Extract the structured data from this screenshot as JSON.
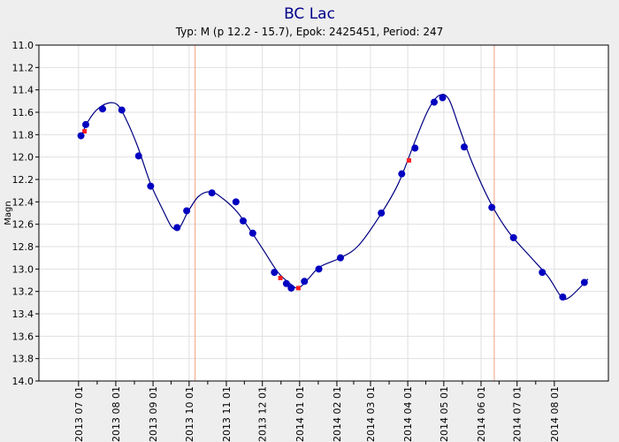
{
  "chart_data": {
    "type": "line",
    "title": "BC Lac",
    "subtitle": "Typ: M (p 12.2 - 15.7), Epok: 2425451, Period: 247",
    "y_label": "Magn",
    "xlim": [
      "2013 05 29",
      "2014 09 15"
    ],
    "xticks": [
      "2013 07 01",
      "2013 08 01",
      "2013 09 01",
      "2013 10 01",
      "2013 11 01",
      "2013 12 01",
      "2014 01 01",
      "2014 02 01",
      "2014 03 01",
      "2014 04 01",
      "2014 05 01",
      "2014 06 01",
      "2014 07 01",
      "2014 08 01"
    ],
    "ylim": [
      11,
      14
    ],
    "y_inverted": true,
    "yticks": [
      {
        "value": 11,
        "label": "11.0"
      },
      {
        "value": 11.2,
        "label": "11.2"
      },
      {
        "value": 11.4,
        "label": "11.4"
      },
      {
        "value": 11.6,
        "label": "11.6"
      },
      {
        "value": 11.8,
        "label": "11.8"
      },
      {
        "value": 12,
        "label": "12.0"
      },
      {
        "value": 12.2,
        "label": "12.2"
      },
      {
        "value": 12.4,
        "label": "12.4"
      },
      {
        "value": 12.6,
        "label": "12.6"
      },
      {
        "value": 12.8,
        "label": "12.8"
      },
      {
        "value": 13,
        "label": "13.0"
      },
      {
        "value": 13.2,
        "label": "13.2"
      },
      {
        "value": 13.4,
        "label": "13.4"
      },
      {
        "value": 13.6,
        "label": "13.6"
      },
      {
        "value": 13.8,
        "label": "13.8"
      },
      {
        "value": 14,
        "label": "14.0"
      }
    ],
    "grid": true,
    "vlines": {
      "color": "#f0a080",
      "x": [
        "2013 10 06",
        "2014 06 12"
      ]
    },
    "series": [
      {
        "style": "line",
        "color": "#000080",
        "x": [
          "2013 07 03",
          "2013 07 09",
          "2013 07 16",
          "2013 07 25",
          "2013 08 02",
          "2013 08 09",
          "2013 08 19",
          "2013 08 30",
          "2013 09 10",
          "2013 09 17",
          "2013 09 23",
          "2013 09 30",
          "2013 10 09",
          "2013 10 19",
          "2013 10 29",
          "2013 11 10",
          "2013 11 22",
          "2013 12 03",
          "2013 12 14",
          "2013 12 24",
          "2013 12 31",
          "2014 01 08",
          "2014 01 18",
          "2014 02 04",
          "2014 02 19",
          "2014 03 09",
          "2014 03 24",
          "2014 04 07",
          "2014 04 18",
          "2014 04 27",
          "2014 05 05",
          "2014 05 14",
          "2014 05 25",
          "2014 06 09",
          "2014 06 24",
          "2014 07 12",
          "2014 07 27",
          "2014 08 07",
          "2014 08 14",
          "2014 08 29"
        ],
        "values": [
          11.81,
          11.68,
          11.58,
          11.52,
          11.53,
          11.65,
          11.9,
          12.24,
          12.49,
          12.63,
          12.63,
          12.49,
          12.35,
          12.31,
          12.37,
          12.49,
          12.67,
          12.85,
          13.03,
          13.13,
          13.17,
          13.09,
          12.98,
          12.9,
          12.79,
          12.52,
          12.24,
          11.86,
          11.58,
          11.45,
          11.48,
          11.74,
          12.06,
          12.41,
          12.67,
          12.89,
          13.07,
          13.25,
          13.25,
          13.09
        ]
      },
      {
        "style": "square",
        "color": "#ff2020",
        "x": [
          "2013 07 06",
          "2013 12 16",
          "2013 12 31",
          "2014 04 02"
        ],
        "values": [
          11.77,
          13.08,
          13.17,
          12.03
        ]
      },
      {
        "style": "circle",
        "color": "#0000c0",
        "x": [
          "2013 07 03",
          "2013 07 07",
          "2013 07 21",
          "2013 08 06",
          "2013 08 20",
          "2013 08 30",
          "2013 09 21",
          "2013 09 29",
          "2013 10 20",
          "2013 11 09",
          "2013 11 15",
          "2013 11 23",
          "2013 12 11",
          "2013 12 21",
          "2013 12 25",
          "2014 01 05",
          "2014 01 17",
          "2014 02 04",
          "2014 03 10",
          "2014 03 27",
          "2014 04 07",
          "2014 04 23",
          "2014 04 30",
          "2014 05 18",
          "2014 06 10",
          "2014 06 28",
          "2014 07 22",
          "2014 08 08",
          "2014 08 26"
        ],
        "values": [
          11.81,
          11.71,
          11.57,
          11.58,
          11.99,
          12.26,
          12.63,
          12.48,
          12.32,
          12.4,
          12.57,
          12.68,
          13.03,
          13.13,
          13.17,
          13.11,
          13.0,
          12.9,
          12.5,
          12.15,
          11.92,
          11.51,
          11.47,
          11.91,
          12.45,
          12.72,
          13.03,
          13.25,
          13.12
        ]
      }
    ]
  }
}
